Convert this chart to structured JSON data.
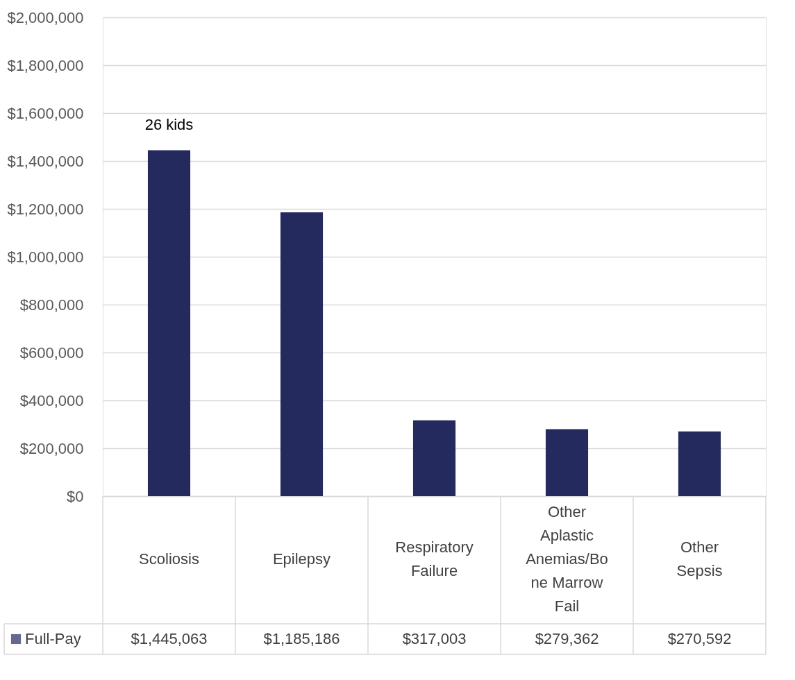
{
  "chart_data": {
    "type": "bar",
    "categories": [
      "Scoliosis",
      "Epilepsy",
      "Respiratory Failure",
      "Other Aplastic Anemias/Bone Marrow Fail",
      "Other Sepsis"
    ],
    "series": [
      {
        "name": "Full-Pay",
        "color": "#252a5e",
        "values": [
          1445063,
          1185186,
          317003,
          279362,
          270592
        ]
      }
    ],
    "ylim": [
      0,
      2000000
    ],
    "yticks": [
      {
        "value": 0,
        "label": "$0"
      },
      {
        "value": 200000,
        "label": "$200,000"
      },
      {
        "value": 400000,
        "label": "$400,000"
      },
      {
        "value": 600000,
        "label": "$600,000"
      },
      {
        "value": 800000,
        "label": "$800,000"
      },
      {
        "value": 1000000,
        "label": "$1,000,000"
      },
      {
        "value": 1200000,
        "label": "$1,200,000"
      },
      {
        "value": 1400000,
        "label": "$1,400,000"
      },
      {
        "value": 1600000,
        "label": "$1,600,000"
      },
      {
        "value": 1800000,
        "label": "$1,800,000"
      },
      {
        "value": 2000000,
        "label": "$2,000,000"
      }
    ],
    "annotations": [
      "26 kids"
    ],
    "value_labels": [
      "$1,445,063",
      "$1,185,186",
      "$317,003",
      "$279,362",
      "$270,592"
    ],
    "grid": "y",
    "legend": "bottom"
  }
}
